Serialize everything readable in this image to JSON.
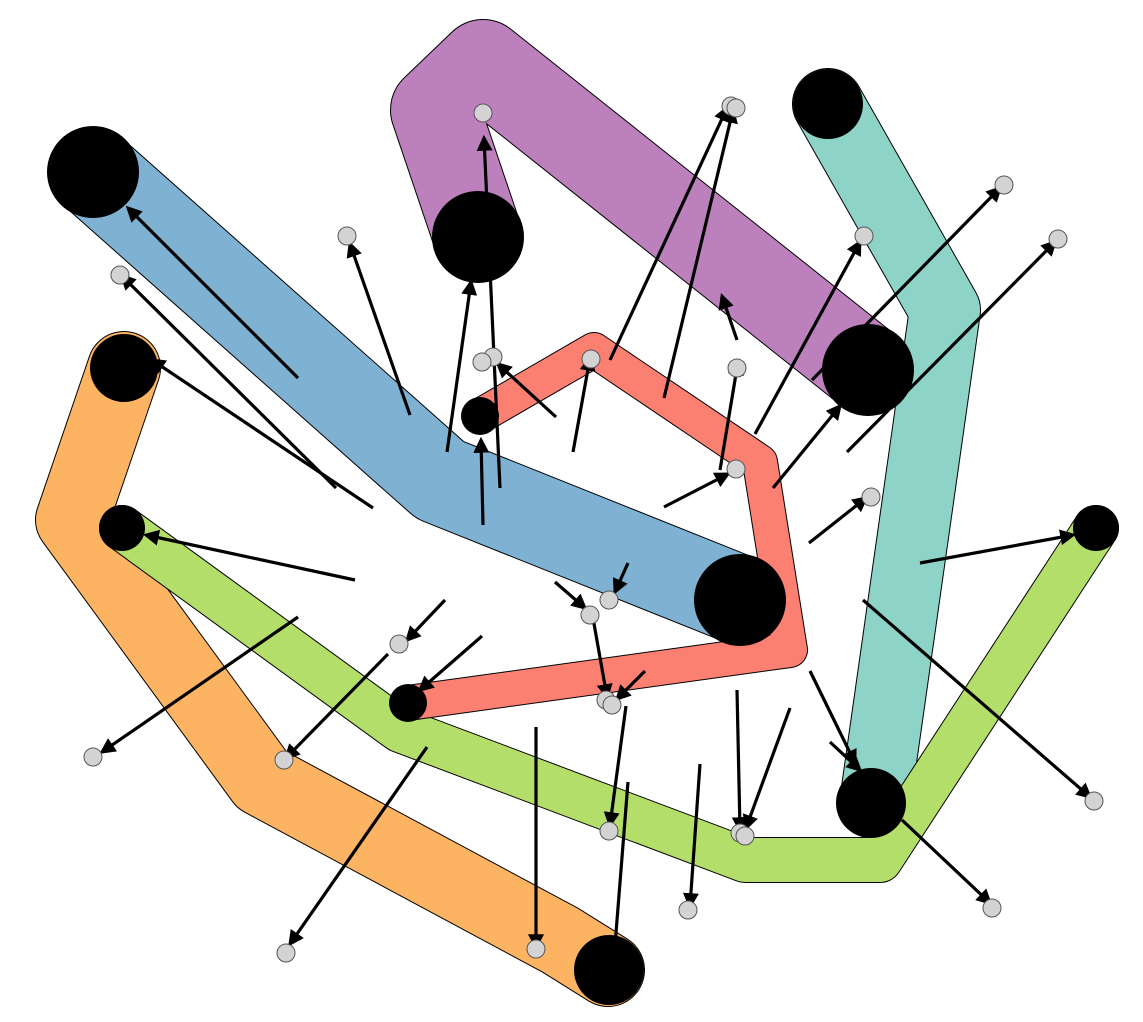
{
  "diagram": {
    "kind": "flow-map",
    "bands": [
      {
        "id": "blue",
        "color": "#7fb1d3"
      },
      {
        "id": "purple",
        "color": "#bc80bd"
      },
      {
        "id": "teal",
        "color": "#8dd3c7"
      },
      {
        "id": "orange",
        "color": "#fdb462"
      },
      {
        "id": "green",
        "color": "#b3de69"
      },
      {
        "id": "red",
        "color": "#fb8072"
      }
    ],
    "port_color": "#d3d3d3",
    "node_color": "#000000",
    "arrow_color": "#000000"
  }
}
